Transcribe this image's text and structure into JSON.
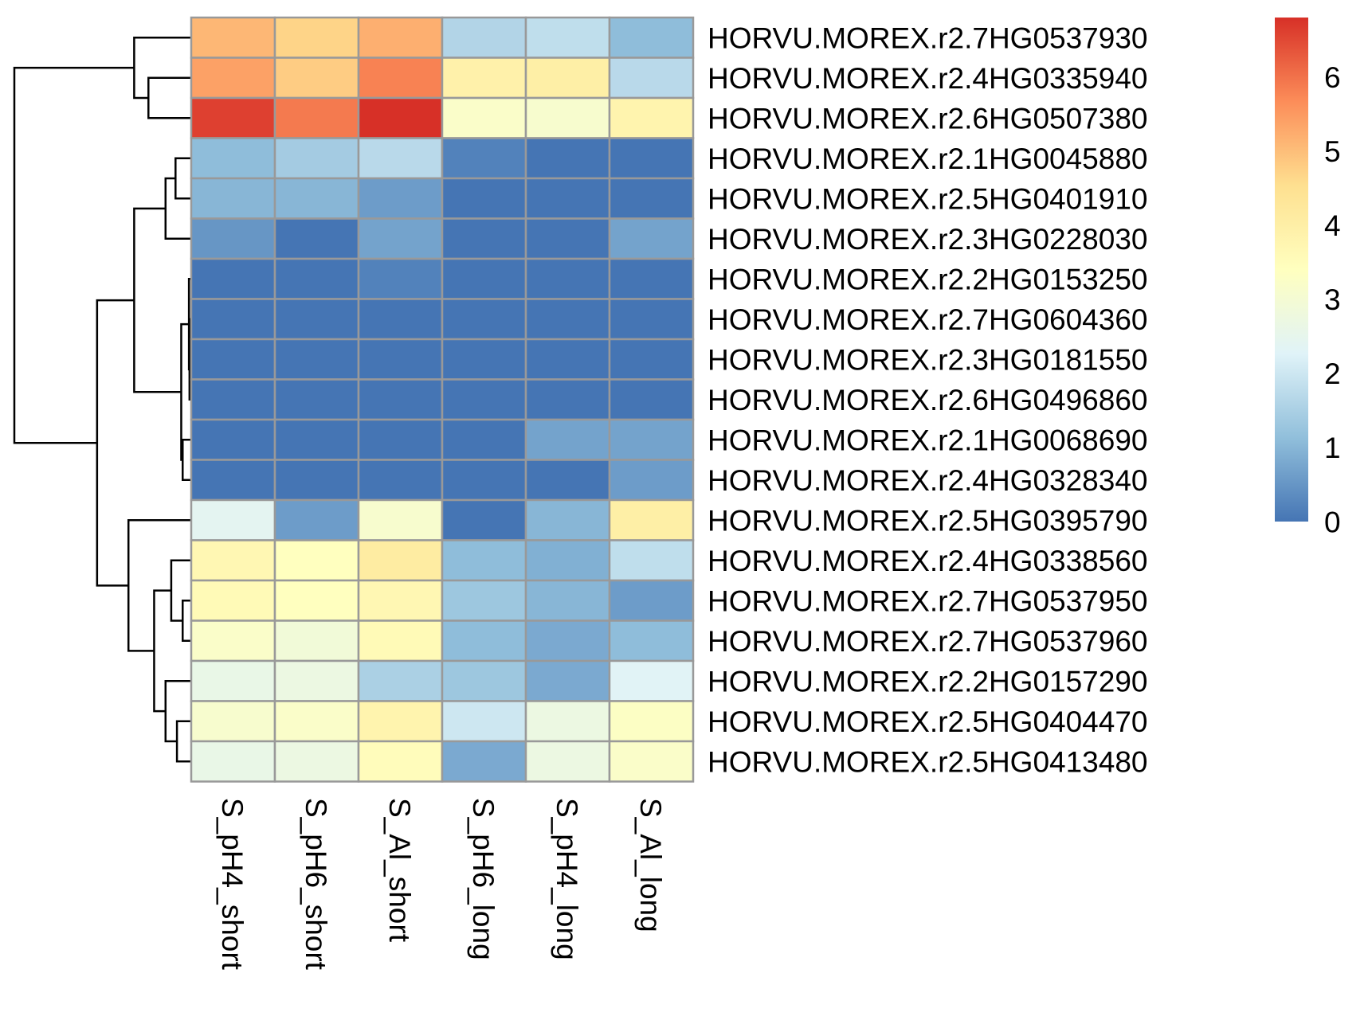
{
  "chart_data": {
    "type": "heatmap",
    "columns": [
      "S_pH4_short",
      "S_pH6_short",
      "S_Al_short",
      "S_pH6_long",
      "S_pH4_long",
      "S_Al_long"
    ],
    "rows": [
      "HORVU.MOREX.r2.7HG0537930",
      "HORVU.MOREX.r2.4HG0335940",
      "HORVU.MOREX.r2.6HG0507380",
      "HORVU.MOREX.r2.1HG0045880",
      "HORVU.MOREX.r2.5HG0401910",
      "HORVU.MOREX.r2.3HG0228030",
      "HORVU.MOREX.r2.2HG0153250",
      "HORVU.MOREX.r2.7HG0604360",
      "HORVU.MOREX.r2.3HG0181550",
      "HORVU.MOREX.r2.6HG0496860",
      "HORVU.MOREX.r2.1HG0068690",
      "HORVU.MOREX.r2.4HG0328340",
      "HORVU.MOREX.r2.5HG0395790",
      "HORVU.MOREX.r2.4HG0338560",
      "HORVU.MOREX.r2.7HG0537950",
      "HORVU.MOREX.r2.7HG0537960",
      "HORVU.MOREX.r2.2HG0157290",
      "HORVU.MOREX.r2.5HG0404470",
      "HORVU.MOREX.r2.5HG0413480"
    ],
    "values": [
      [
        5.1,
        4.7,
        5.2,
        1.6,
        1.8,
        1.1
      ],
      [
        5.4,
        4.8,
        5.8,
        3.9,
        4.0,
        1.7
      ],
      [
        6.6,
        5.9,
        6.8,
        3.2,
        3.1,
        3.8
      ],
      [
        1.1,
        1.4,
        1.7,
        0.2,
        0.0,
        0.0
      ],
      [
        1.0,
        1.0,
        0.6,
        0.0,
        0.0,
        0.0
      ],
      [
        0.5,
        0.0,
        0.7,
        0.0,
        0.0,
        0.7
      ],
      [
        0.0,
        0.0,
        0.2,
        0.0,
        0.0,
        0.0
      ],
      [
        0.0,
        0.0,
        0.0,
        0.0,
        0.0,
        0.0
      ],
      [
        0.0,
        0.0,
        0.0,
        0.0,
        0.0,
        0.0
      ],
      [
        0.0,
        0.0,
        0.0,
        0.0,
        0.0,
        0.0
      ],
      [
        0.0,
        0.0,
        0.0,
        0.0,
        0.7,
        0.7
      ],
      [
        0.0,
        0.0,
        0.0,
        0.0,
        0.0,
        0.6
      ],
      [
        2.4,
        0.6,
        3.1,
        0.0,
        1.0,
        4.0
      ],
      [
        3.7,
        3.4,
        4.1,
        1.1,
        0.9,
        1.8
      ],
      [
        3.6,
        3.4,
        3.7,
        1.3,
        1.0,
        0.6
      ],
      [
        3.2,
        2.9,
        3.6,
        1.1,
        0.8,
        1.1
      ],
      [
        2.6,
        2.7,
        1.5,
        1.3,
        0.8,
        2.3
      ],
      [
        3.1,
        3.2,
        3.8,
        2.0,
        2.7,
        3.3
      ],
      [
        2.6,
        2.7,
        3.5,
        0.8,
        2.7,
        3.2
      ]
    ],
    "color_scale": [
      "#4575B4",
      "#91BFDB",
      "#E0F3F8",
      "#FFFFBF",
      "#FEE090",
      "#FC8D59",
      "#D73027"
    ],
    "scale_range": [
      0,
      6.8
    ],
    "legend": {
      "ticks": [
        0,
        1,
        2,
        3,
        4,
        5,
        6
      ],
      "tick_labels": [
        "0",
        "1",
        "2",
        "3",
        "4",
        "5",
        "6"
      ],
      "placement": "right"
    },
    "row_dendrogram": "left",
    "cell_border_color": "#999999"
  }
}
